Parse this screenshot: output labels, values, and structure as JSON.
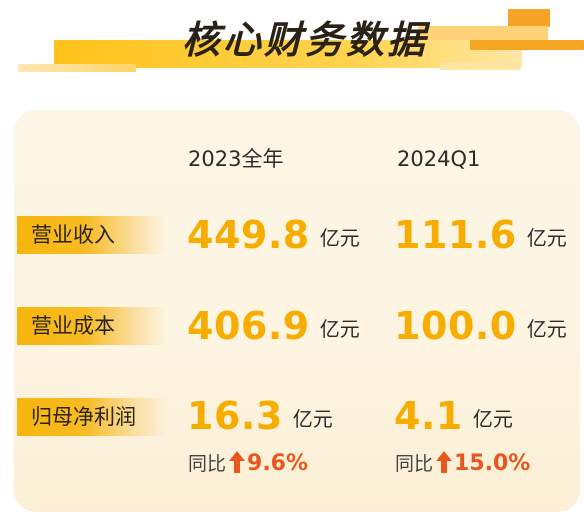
{
  "title": "核心财务数据",
  "colors": {
    "accent_yellow": "#f6ad00",
    "label_bar": "#f8b50e",
    "card_bg": "#fdf5e4",
    "growth": "#e8581e"
  },
  "columns": [
    "2023全年",
    "2024Q1"
  ],
  "rows": [
    {
      "label": "营业收入",
      "values": [
        {
          "number": "449.8",
          "unit": "亿元"
        },
        {
          "number": "111.6",
          "unit": "亿元"
        }
      ]
    },
    {
      "label": "营业成本",
      "values": [
        {
          "number": "406.9",
          "unit": "亿元"
        },
        {
          "number": "100.0",
          "unit": "亿元"
        }
      ]
    },
    {
      "label": "归母净利润",
      "values": [
        {
          "number": "16.3",
          "unit": "亿元"
        },
        {
          "number": "4.1",
          "unit": "亿元"
        }
      ],
      "yoy": [
        {
          "label": "同比",
          "change": "9.6%",
          "direction": "up"
        },
        {
          "label": "同比",
          "change": "15.0%",
          "direction": "up"
        }
      ]
    }
  ],
  "icons": {
    "growth": "up-arrow-icon"
  }
}
